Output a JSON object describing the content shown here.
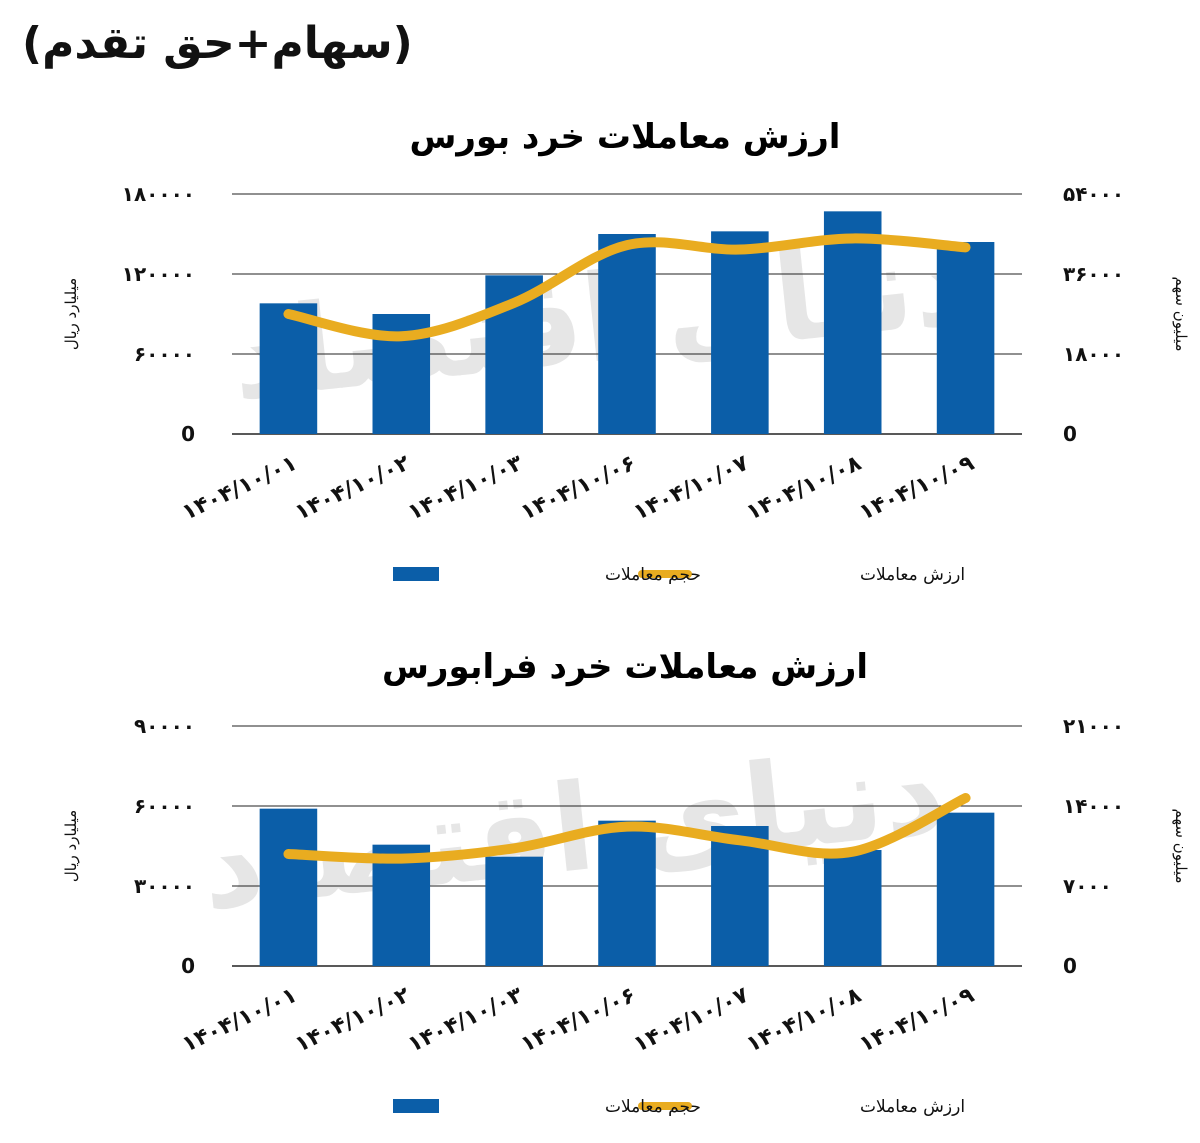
{
  "page": {
    "heading": "(سهام+حق تقدم)",
    "colors": {
      "bar": "#0b5ea8",
      "line": "#e9ac20",
      "grid": "#222222",
      "watermark": "#e6e6e6"
    },
    "watermark_text": "دنیای اقتصاد"
  },
  "chart_data": [
    {
      "type": "bar",
      "title": "ارزش معاملات خرد بورس",
      "categories": [
        "1404/10/01",
        "1404/10/02",
        "1404/10/03",
        "1404/10/06",
        "1404/10/07",
        "1404/10/08",
        "1404/10/09"
      ],
      "category_labels": [
        "۱۴۰۴/۱۰/۰۱",
        "۱۴۰۴/۱۰/۰۲",
        "۱۴۰۴/۱۰/۰۳",
        "۱۴۰۴/۱۰/۰۶",
        "۱۴۰۴/۱۰/۰۷",
        "۱۴۰۴/۱۰/۰۸",
        "۱۴۰۴/۱۰/۰۹"
      ],
      "ylabel": "میلیارد ریال",
      "y2label": "میلیون سهم",
      "ylim": [
        0,
        180000
      ],
      "y2lim": [
        0,
        54000
      ],
      "yticks": [
        0,
        60000,
        120000,
        180000
      ],
      "y2ticks": [
        0,
        18000,
        36000,
        54000
      ],
      "ytick_labels": [
        "0",
        "۶۰۰۰۰",
        "۱۲۰۰۰۰",
        "۱۸۰۰۰۰"
      ],
      "y2tick_labels": [
        "0",
        "۱۸۰۰۰",
        "۳۶۰۰۰",
        "۵۴۰۰۰"
      ],
      "grid": true,
      "legend_position": "bottom",
      "series": [
        {
          "name": "حجم معاملات",
          "type": "bar",
          "axis": "left",
          "values": [
            98000,
            90000,
            119000,
            150000,
            152000,
            167000,
            144000
          ]
        },
        {
          "name": "ارزش معاملات",
          "type": "line",
          "axis": "right",
          "values": [
            27000,
            22000,
            29500,
            42500,
            41500,
            44000,
            42000
          ]
        }
      ]
    },
    {
      "type": "bar",
      "title": "ارزش معاملات خرد فرابورس",
      "categories": [
        "1404/10/01",
        "1404/10/02",
        "1404/10/03",
        "1404/10/06",
        "1404/10/07",
        "1404/10/08",
        "1404/10/09"
      ],
      "category_labels": [
        "۱۴۰۴/۱۰/۰۱",
        "۱۴۰۴/۱۰/۰۲",
        "۱۴۰۴/۱۰/۰۳",
        "۱۴۰۴/۱۰/۰۶",
        "۱۴۰۴/۱۰/۰۷",
        "۱۴۰۴/۱۰/۰۸",
        "۱۴۰۴/۱۰/۰۹"
      ],
      "ylabel": "میلیارد ریال",
      "y2label": "میلیون سهم",
      "ylim": [
        0,
        90000
      ],
      "y2lim": [
        0,
        21000
      ],
      "yticks": [
        0,
        30000,
        60000,
        90000
      ],
      "y2ticks": [
        0,
        7000,
        14000,
        21000
      ],
      "ytick_labels": [
        "0",
        "۳۰۰۰۰",
        "۶۰۰۰۰",
        "۹۰۰۰۰"
      ],
      "y2tick_labels": [
        "0",
        "۷۰۰۰",
        "۱۴۰۰۰",
        "۲۱۰۰۰"
      ],
      "grid": true,
      "legend_position": "bottom",
      "series": [
        {
          "name": "حجم معاملات",
          "type": "bar",
          "axis": "left",
          "values": [
            59000,
            45500,
            41000,
            54500,
            52500,
            43500,
            57500
          ]
        },
        {
          "name": "ارزش معاملات",
          "type": "line",
          "axis": "right",
          "values": [
            9800,
            9400,
            10300,
            12200,
            11000,
            10000,
            14700
          ]
        }
      ]
    }
  ]
}
